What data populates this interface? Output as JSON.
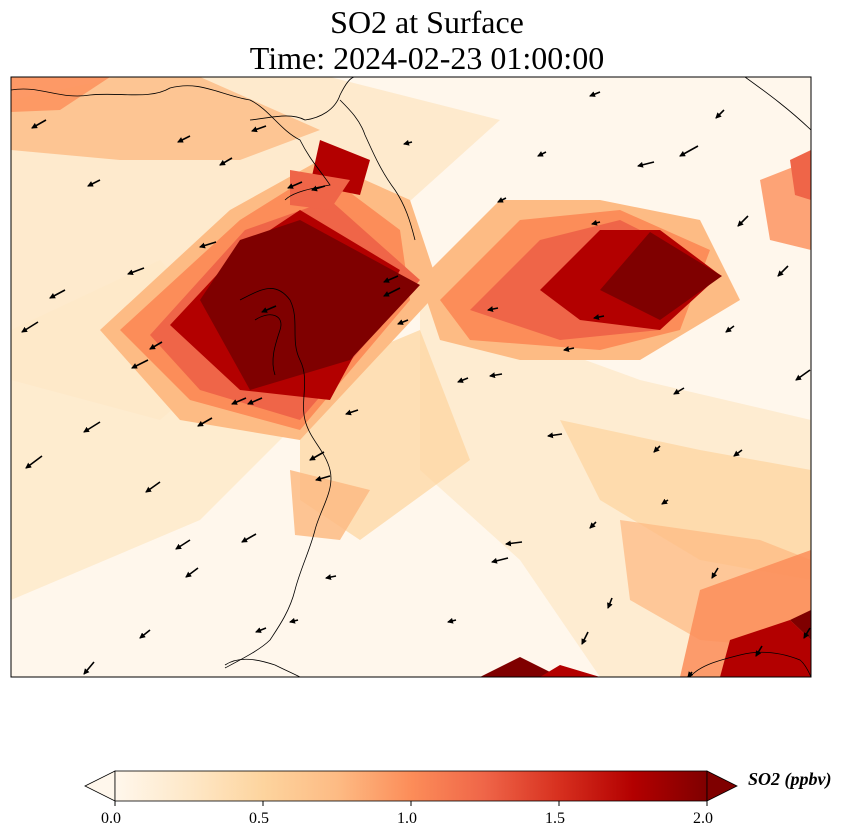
{
  "title": {
    "line1": "SO2 at Surface",
    "line2": "Time: 2024-02-23 01:00:00"
  },
  "colorbar": {
    "label": "SO2 (ppbv)",
    "ticks": [
      "0.0",
      "0.5",
      "1.0",
      "1.5",
      "2.0"
    ],
    "min": 0,
    "max": 2,
    "extend": "both",
    "colormap": "OrRd",
    "colors": [
      "#fff7ec",
      "#fee8c8",
      "#fdd49e",
      "#fdbb84",
      "#fc8d59",
      "#ef6548",
      "#d7301f",
      "#b30000",
      "#7f0000"
    ]
  },
  "map": {
    "field": "SO2 surface concentration",
    "has_wind_vectors": true,
    "has_coastlines": true
  }
}
